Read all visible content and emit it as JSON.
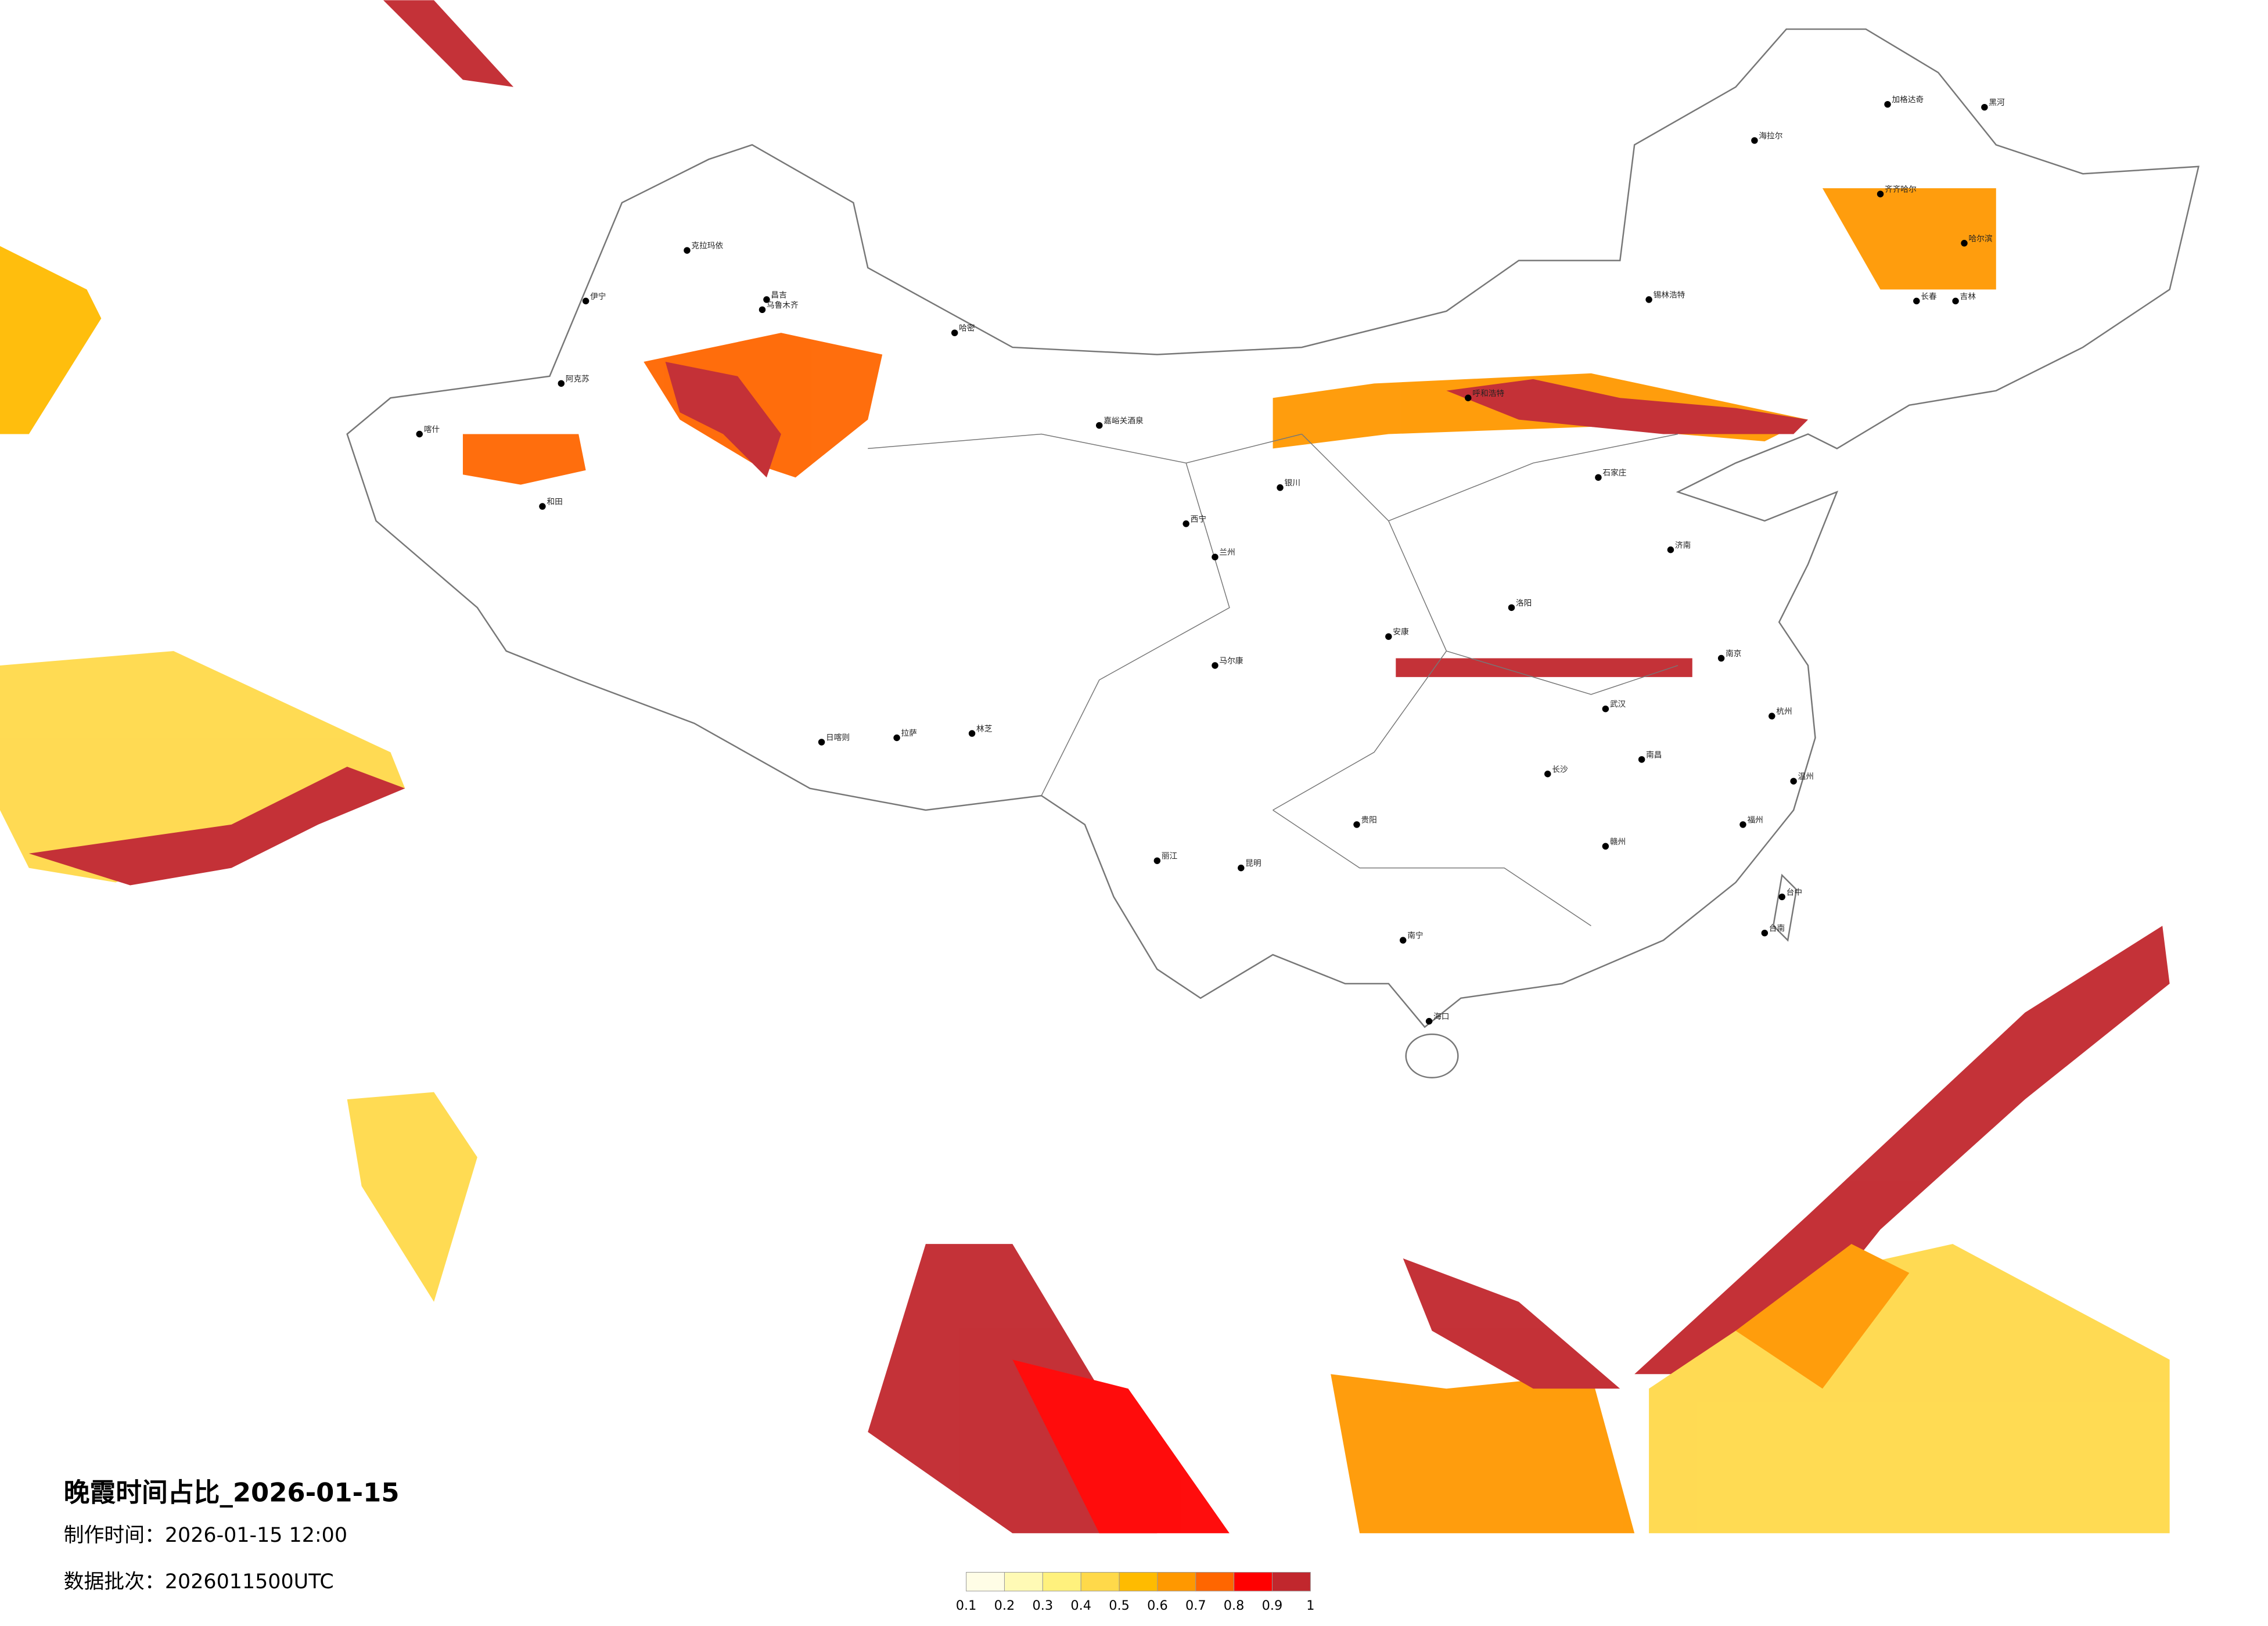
{
  "title": "晚霞时间占比_2026-01-15",
  "production_time": "制作时间：2026-01-15 12:00",
  "data_batch": "数据批次：2026011500UTC",
  "colorbar": {
    "ticks": [
      0.1,
      0.2,
      0.3,
      0.4,
      0.5,
      0.6,
      0.7,
      0.8,
      0.9,
      1
    ],
    "colors": [
      "#fffde6",
      "#fffab5",
      "#fff17d",
      "#ffd94a",
      "#ffbb00",
      "#ff9800",
      "#ff6600",
      "#ff0000",
      "#c1272d"
    ]
  },
  "cities": [
    "克拉玛依",
    "伊宁",
    "昌吉",
    "乌鲁木齐",
    "哈密",
    "阿克苏",
    "喀什",
    "和田",
    "嘉峪关酒泉",
    "海拉尔",
    "加格达奇",
    "黑河",
    "齐齐哈尔",
    "哈尔滨",
    "长春",
    "吉林",
    "锡林浩特",
    "呼和浩特",
    "石家庄",
    "西宁",
    "兰州",
    "银川",
    "安康",
    "拉萨",
    "日喀则",
    "林芝",
    "昆明",
    "贵阳",
    "南宁",
    "海口",
    "长沙",
    "武汉",
    "南京",
    "杭州",
    "福州",
    "台中",
    "台南",
    "济南",
    "洛阳",
    "南昌",
    "马尔康",
    "丽江",
    "赣州",
    "温州"
  ]
}
